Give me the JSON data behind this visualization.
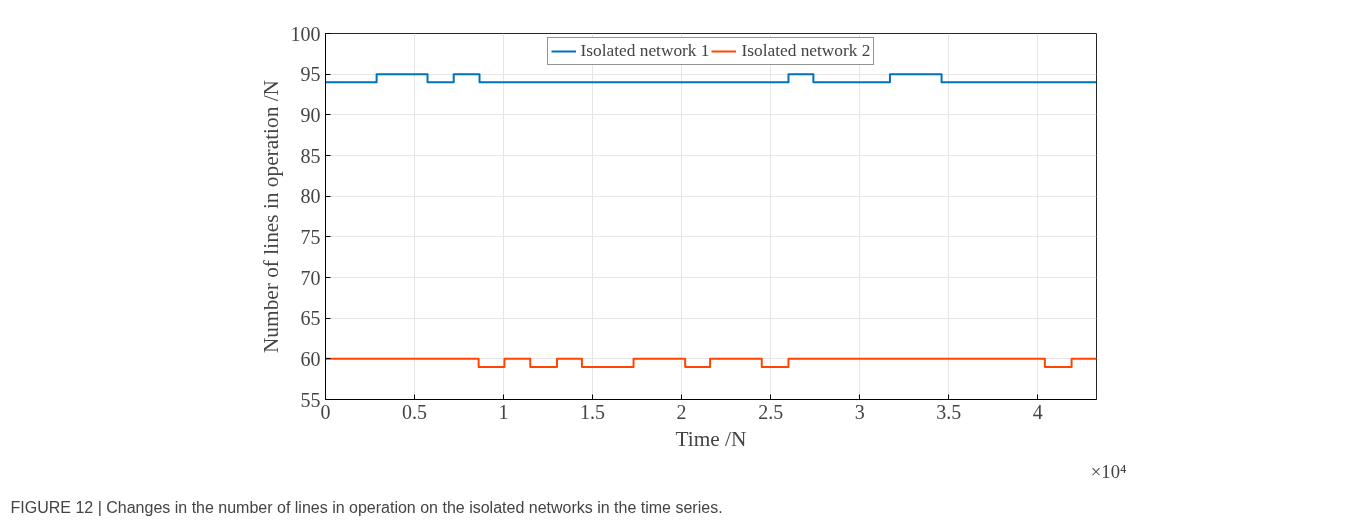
{
  "chart_data": {
    "type": "step",
    "xlabel": "Time /N",
    "ylabel": "Number of lines in operation /N",
    "xlim": [
      0,
      4.33
    ],
    "ylim": [
      55,
      100
    ],
    "xticks": [
      0,
      0.5,
      1,
      1.5,
      2,
      2.5,
      3,
      3.5,
      4
    ],
    "yticks": [
      55,
      60,
      65,
      70,
      75,
      80,
      85,
      90,
      95,
      100
    ],
    "grid": true,
    "legend": "top",
    "line_style": "solid",
    "marker": "none",
    "series": [
      {
        "name": "Isolated network 1",
        "color": "#0072bd",
        "x": [
          0,
          0.287,
          0.573,
          0.72,
          0.865,
          2.6,
          2.74,
          3.17,
          3.46,
          4.33
        ],
        "values": [
          94,
          95,
          94,
          95,
          94,
          95,
          94,
          95,
          94,
          94
        ]
      },
      {
        "name": "Isolated network 2",
        "color": "#ff4500",
        "x": [
          0,
          0.86,
          1.005,
          1.15,
          1.3,
          1.44,
          1.73,
          2.02,
          2.16,
          2.45,
          2.6,
          4.04,
          4.19,
          4.33
        ],
        "values": [
          60,
          59,
          60,
          59,
          60,
          59,
          60,
          59,
          60,
          59,
          60,
          59,
          60,
          60
        ]
      }
    ],
    "annotations": [
      "×10⁴",
      "FIGURE 12 | Changes in the number of lines in operation on the isolated networks in the time series."
    ]
  }
}
